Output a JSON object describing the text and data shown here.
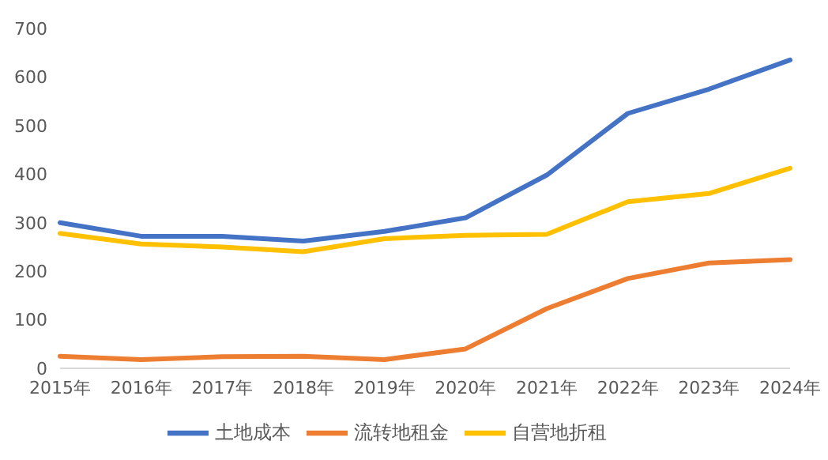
{
  "chart_data": {
    "type": "line",
    "categories": [
      "2015年",
      "2016年",
      "2017年",
      "2018年",
      "2019年",
      "2020年",
      "2021年",
      "2022年",
      "2023年",
      "2024年"
    ],
    "series": [
      {
        "name": "土地成本",
        "color": "#4472c4",
        "values": [
          300,
          272,
          272,
          262,
          282,
          310,
          398,
          525,
          575,
          635
        ]
      },
      {
        "name": "流转地租金",
        "color": "#ed7d31",
        "values": [
          25,
          18,
          24,
          25,
          18,
          40,
          123,
          185,
          217,
          224
        ]
      },
      {
        "name": "自营地折租",
        "color": "#ffc000",
        "values": [
          278,
          256,
          250,
          240,
          267,
          274,
          276,
          343,
          360,
          412
        ]
      }
    ],
    "ylim": [
      0,
      700
    ],
    "yticks": [
      0,
      100,
      200,
      300,
      400,
      500,
      600,
      700
    ],
    "grid": false,
    "legend": "bottom",
    "marker": "none",
    "line_style": "solid"
  }
}
